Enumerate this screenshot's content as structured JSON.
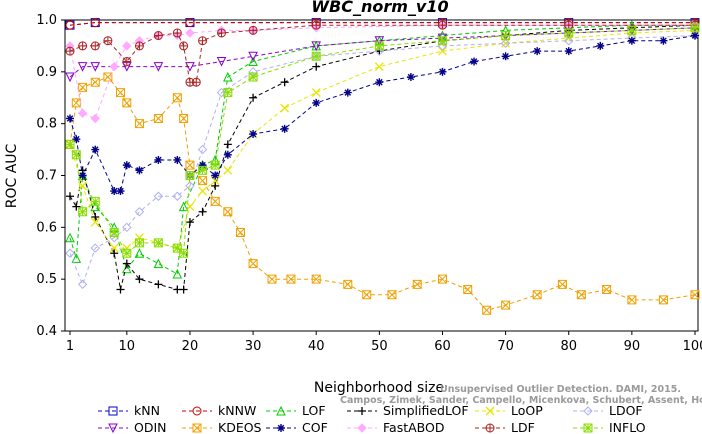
{
  "chart_data": {
    "type": "line",
    "title": "WBC_norm_v10",
    "xlabel": "Neighborhood size",
    "ylabel": "ROC AUC",
    "xlim": [
      1,
      100
    ],
    "ylim": [
      0.4,
      1.0
    ],
    "xticks": [
      1,
      10,
      20,
      30,
      40,
      50,
      60,
      70,
      80,
      90,
      100
    ],
    "yticks": [
      0.4,
      0.5,
      0.6,
      0.7,
      0.8,
      0.9,
      1.0
    ],
    "grid": false,
    "legend_position": "bottom",
    "watermark": [
      "Unsupervised Outlier Detection. DAMI, 2015.",
      "Campos, Zimek, Sander, Campello, Micenkova, Schubert, Assent, Houle"
    ],
    "series": [
      {
        "name": "kNN",
        "color": "#0000cc",
        "marker": "square",
        "points": [
          [
            1,
            0.99
          ],
          [
            5,
            0.995
          ],
          [
            20,
            0.995
          ],
          [
            40,
            0.995
          ],
          [
            60,
            0.995
          ],
          [
            80,
            0.995
          ],
          [
            100,
            0.995
          ]
        ]
      },
      {
        "name": "kNNW",
        "color": "#cc0000",
        "marker": "circle",
        "points": [
          [
            1,
            0.99
          ],
          [
            5,
            0.995
          ],
          [
            20,
            0.995
          ],
          [
            40,
            0.995
          ],
          [
            60,
            0.995
          ],
          [
            80,
            0.995
          ],
          [
            100,
            0.995
          ]
        ]
      },
      {
        "name": "LOF",
        "color": "#00cc00",
        "marker": "triangle",
        "points": [
          [
            1,
            0.58
          ],
          [
            2,
            0.54
          ],
          [
            3,
            0.7
          ],
          [
            5,
            0.64
          ],
          [
            8,
            0.6
          ],
          [
            10,
            0.52
          ],
          [
            12,
            0.55
          ],
          [
            15,
            0.53
          ],
          [
            18,
            0.51
          ],
          [
            19,
            0.64
          ],
          [
            22,
            0.72
          ],
          [
            24,
            0.73
          ],
          [
            26,
            0.89
          ],
          [
            30,
            0.92
          ],
          [
            40,
            0.95
          ],
          [
            50,
            0.96
          ],
          [
            60,
            0.97
          ],
          [
            70,
            0.98
          ],
          [
            80,
            0.985
          ],
          [
            90,
            0.99
          ],
          [
            100,
            0.99
          ]
        ]
      },
      {
        "name": "SimplifiedLOF",
        "color": "#000000",
        "marker": "plus",
        "points": [
          [
            1,
            0.66
          ],
          [
            2,
            0.64
          ],
          [
            3,
            0.71
          ],
          [
            5,
            0.62
          ],
          [
            8,
            0.55
          ],
          [
            9,
            0.48
          ],
          [
            10,
            0.53
          ],
          [
            12,
            0.5
          ],
          [
            15,
            0.49
          ],
          [
            18,
            0.48
          ],
          [
            19,
            0.48
          ],
          [
            20,
            0.61
          ],
          [
            22,
            0.63
          ],
          [
            24,
            0.68
          ],
          [
            26,
            0.76
          ],
          [
            30,
            0.85
          ],
          [
            35,
            0.88
          ],
          [
            40,
            0.91
          ],
          [
            50,
            0.94
          ],
          [
            60,
            0.96
          ],
          [
            70,
            0.97
          ],
          [
            80,
            0.98
          ],
          [
            90,
            0.985
          ],
          [
            100,
            0.99
          ]
        ]
      },
      {
        "name": "LoOP",
        "color": "#e6e600",
        "marker": "cross",
        "points": [
          [
            1,
            0.76
          ],
          [
            3,
            0.68
          ],
          [
            5,
            0.61
          ],
          [
            8,
            0.56
          ],
          [
            10,
            0.56
          ],
          [
            12,
            0.58
          ],
          [
            15,
            0.57
          ],
          [
            18,
            0.56
          ],
          [
            20,
            0.64
          ],
          [
            22,
            0.67
          ],
          [
            24,
            0.69
          ],
          [
            26,
            0.71
          ],
          [
            30,
            0.78
          ],
          [
            35,
            0.83
          ],
          [
            40,
            0.86
          ],
          [
            50,
            0.91
          ],
          [
            60,
            0.94
          ],
          [
            70,
            0.955
          ],
          [
            80,
            0.965
          ],
          [
            90,
            0.975
          ],
          [
            100,
            0.98
          ]
        ]
      },
      {
        "name": "LDOF",
        "color": "#b0b0ee",
        "marker": "diamond",
        "points": [
          [
            1,
            0.55
          ],
          [
            3,
            0.49
          ],
          [
            5,
            0.56
          ],
          [
            8,
            0.58
          ],
          [
            10,
            0.6
          ],
          [
            12,
            0.63
          ],
          [
            15,
            0.66
          ],
          [
            18,
            0.66
          ],
          [
            20,
            0.68
          ],
          [
            22,
            0.75
          ],
          [
            25,
            0.86
          ],
          [
            30,
            0.9
          ],
          [
            40,
            0.93
          ],
          [
            50,
            0.94
          ],
          [
            60,
            0.95
          ],
          [
            70,
            0.955
          ],
          [
            80,
            0.96
          ],
          [
            90,
            0.965
          ],
          [
            100,
            0.97
          ]
        ]
      },
      {
        "name": "ODIN",
        "color": "#8800cc",
        "marker": "triangle-down",
        "points": [
          [
            1,
            0.89
          ],
          [
            3,
            0.91
          ],
          [
            5,
            0.91
          ],
          [
            10,
            0.91
          ],
          [
            15,
            0.91
          ],
          [
            20,
            0.91
          ],
          [
            25,
            0.92
          ],
          [
            30,
            0.93
          ],
          [
            40,
            0.95
          ],
          [
            50,
            0.96
          ],
          [
            60,
            0.965
          ],
          [
            70,
            0.97
          ],
          [
            80,
            0.975
          ],
          [
            90,
            0.98
          ],
          [
            100,
            0.985
          ]
        ]
      },
      {
        "name": "KDEOS",
        "color": "#f0a000",
        "marker": "square-x",
        "points": [
          [
            1,
            0.76
          ],
          [
            2,
            0.84
          ],
          [
            3,
            0.87
          ],
          [
            5,
            0.88
          ],
          [
            7,
            0.89
          ],
          [
            9,
            0.86
          ],
          [
            10,
            0.84
          ],
          [
            12,
            0.8
          ],
          [
            15,
            0.81
          ],
          [
            18,
            0.85
          ],
          [
            19,
            0.81
          ],
          [
            20,
            0.72
          ],
          [
            22,
            0.69
          ],
          [
            24,
            0.65
          ],
          [
            26,
            0.63
          ],
          [
            28,
            0.59
          ],
          [
            30,
            0.53
          ],
          [
            33,
            0.5
          ],
          [
            36,
            0.5
          ],
          [
            40,
            0.5
          ],
          [
            45,
            0.49
          ],
          [
            48,
            0.47
          ],
          [
            52,
            0.47
          ],
          [
            56,
            0.49
          ],
          [
            60,
            0.5
          ],
          [
            64,
            0.48
          ],
          [
            67,
            0.44
          ],
          [
            70,
            0.45
          ],
          [
            75,
            0.47
          ],
          [
            79,
            0.49
          ],
          [
            82,
            0.47
          ],
          [
            86,
            0.48
          ],
          [
            90,
            0.46
          ],
          [
            95,
            0.46
          ],
          [
            100,
            0.47
          ]
        ]
      },
      {
        "name": "COF",
        "color": "#000088",
        "marker": "star",
        "points": [
          [
            1,
            0.81
          ],
          [
            2,
            0.77
          ],
          [
            3,
            0.7
          ],
          [
            5,
            0.75
          ],
          [
            8,
            0.67
          ],
          [
            9,
            0.67
          ],
          [
            10,
            0.72
          ],
          [
            12,
            0.71
          ],
          [
            15,
            0.73
          ],
          [
            18,
            0.73
          ],
          [
            20,
            0.7
          ],
          [
            22,
            0.72
          ],
          [
            24,
            0.7
          ],
          [
            26,
            0.74
          ],
          [
            30,
            0.78
          ],
          [
            35,
            0.79
          ],
          [
            40,
            0.84
          ],
          [
            45,
            0.86
          ],
          [
            50,
            0.88
          ],
          [
            55,
            0.89
          ],
          [
            60,
            0.9
          ],
          [
            65,
            0.92
          ],
          [
            70,
            0.93
          ],
          [
            75,
            0.94
          ],
          [
            80,
            0.94
          ],
          [
            85,
            0.95
          ],
          [
            90,
            0.96
          ],
          [
            95,
            0.96
          ],
          [
            100,
            0.97
          ]
        ]
      },
      {
        "name": "FastABOD",
        "color": "#ffaaff",
        "marker": "diamond-filled",
        "points": [
          [
            1,
            0.95
          ],
          [
            3,
            0.82
          ],
          [
            5,
            0.81
          ],
          [
            8,
            0.91
          ],
          [
            10,
            0.95
          ],
          [
            12,
            0.96
          ],
          [
            15,
            0.97
          ],
          [
            18,
            0.97
          ],
          [
            20,
            0.975
          ],
          [
            25,
            0.98
          ],
          [
            30,
            0.98
          ],
          [
            40,
            0.985
          ],
          [
            60,
            0.99
          ],
          [
            80,
            0.99
          ],
          [
            100,
            0.99
          ]
        ]
      },
      {
        "name": "LDF",
        "color": "#aa2222",
        "marker": "circle-plus",
        "points": [
          [
            1,
            0.94
          ],
          [
            3,
            0.95
          ],
          [
            5,
            0.95
          ],
          [
            7,
            0.96
          ],
          [
            10,
            0.92
          ],
          [
            12,
            0.95
          ],
          [
            15,
            0.97
          ],
          [
            18,
            0.975
          ],
          [
            19,
            0.95
          ],
          [
            20,
            0.88
          ],
          [
            21,
            0.88
          ],
          [
            22,
            0.96
          ],
          [
            25,
            0.975
          ],
          [
            30,
            0.98
          ],
          [
            40,
            0.99
          ],
          [
            60,
            0.99
          ],
          [
            80,
            0.99
          ],
          [
            100,
            0.99
          ]
        ]
      },
      {
        "name": "INFLO",
        "color": "#88dd00",
        "marker": "square-star",
        "points": [
          [
            1,
            0.76
          ],
          [
            2,
            0.74
          ],
          [
            3,
            0.63
          ],
          [
            5,
            0.65
          ],
          [
            8,
            0.59
          ],
          [
            10,
            0.55
          ],
          [
            12,
            0.57
          ],
          [
            15,
            0.57
          ],
          [
            18,
            0.56
          ],
          [
            19,
            0.55
          ],
          [
            20,
            0.7
          ],
          [
            22,
            0.71
          ],
          [
            24,
            0.72
          ],
          [
            26,
            0.86
          ],
          [
            30,
            0.89
          ],
          [
            40,
            0.93
          ],
          [
            50,
            0.95
          ],
          [
            60,
            0.96
          ],
          [
            70,
            0.97
          ],
          [
            80,
            0.975
          ],
          [
            90,
            0.98
          ],
          [
            100,
            0.985
          ]
        ]
      }
    ]
  }
}
